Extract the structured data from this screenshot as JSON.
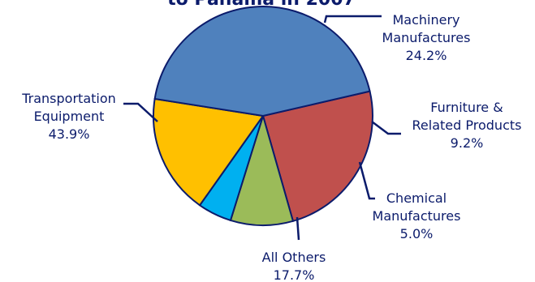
{
  "chart_data": {
    "type": "pie",
    "title_fragment": "to Panama in 2007",
    "slices": [
      {
        "label": [
          "Machinery",
          "Manufactures"
        ],
        "value": 24.2,
        "value_label": "24.2%",
        "color": "#c0504d"
      },
      {
        "label": [
          "Furniture &",
          "Related Products"
        ],
        "value": 9.2,
        "value_label": "9.2%",
        "color": "#9bbb59"
      },
      {
        "label": [
          "Chemical",
          "Manufactures"
        ],
        "value": 5.0,
        "value_label": "5.0%",
        "color": "#00b0f0"
      },
      {
        "label": [
          "All Others"
        ],
        "value": 17.7,
        "value_label": "17.7%",
        "color": "#ffc000"
      },
      {
        "label": [
          "Transportation",
          "Equipment"
        ],
        "value": 43.9,
        "value_label": "43.9%",
        "color": "#4f81bd"
      }
    ],
    "start_angle_deg": -13,
    "direction": "clockwise",
    "outline_color": "#0b1b6b"
  }
}
